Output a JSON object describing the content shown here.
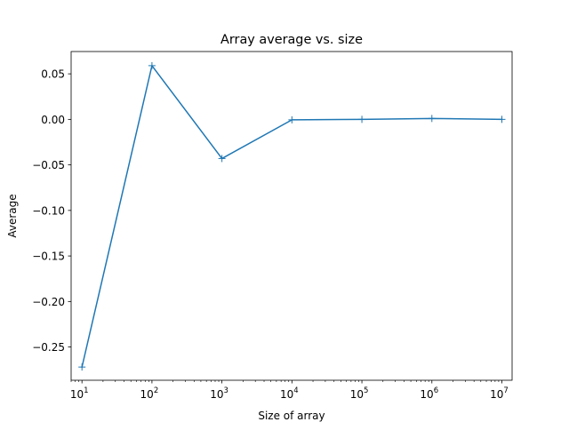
{
  "chart_data": {
    "type": "line",
    "title": "Array average vs. size",
    "xlabel": "Size of array",
    "ylabel": "Average",
    "xscale": "log",
    "xlim": [
      7,
      14000000
    ],
    "ylim": [
      -0.2865,
      0.0745
    ],
    "grid": false,
    "legend": "none",
    "marker": "+",
    "series_color": "#1f77b4",
    "x": [
      10,
      100,
      1000,
      10000,
      100000,
      1000000,
      10000000
    ],
    "y": [
      -0.272,
      0.059,
      -0.043,
      -0.0005,
      0.0,
      0.001,
      0.0
    ],
    "x_ticks": [
      {
        "value": 10,
        "base": "10",
        "exp": "1"
      },
      {
        "value": 100,
        "base": "10",
        "exp": "2"
      },
      {
        "value": 1000,
        "base": "10",
        "exp": "3"
      },
      {
        "value": 10000,
        "base": "10",
        "exp": "4"
      },
      {
        "value": 100000,
        "base": "10",
        "exp": "5"
      },
      {
        "value": 1000000,
        "base": "10",
        "exp": "6"
      },
      {
        "value": 10000000,
        "base": "10",
        "exp": "7"
      }
    ],
    "y_ticks": [
      {
        "value": 0.05,
        "label": "0.05"
      },
      {
        "value": 0.0,
        "label": "0.00"
      },
      {
        "value": -0.05,
        "label": "−0.05"
      },
      {
        "value": -0.1,
        "label": "−0.10"
      },
      {
        "value": -0.15,
        "label": "−0.15"
      },
      {
        "value": -0.2,
        "label": "−0.20"
      },
      {
        "value": -0.25,
        "label": "−0.25"
      }
    ]
  }
}
